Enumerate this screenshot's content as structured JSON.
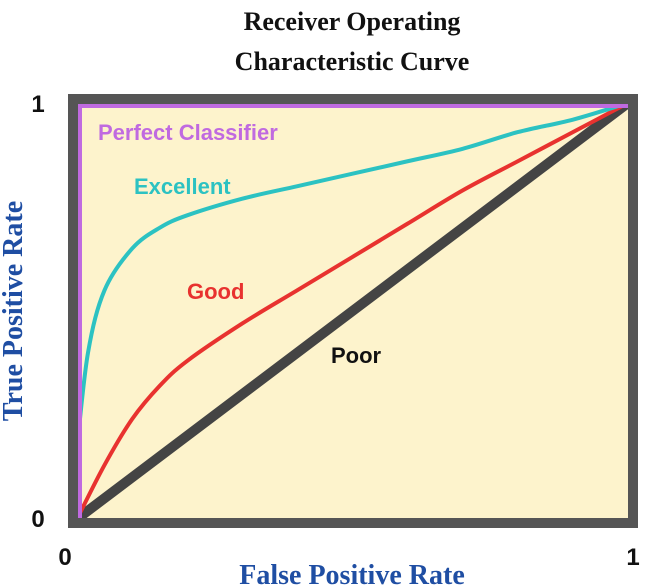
{
  "chart_data": {
    "type": "line",
    "title_lines": [
      "Receiver Operating",
      "Characteristic Curve"
    ],
    "xlabel": "False Positive Rate",
    "ylabel": "True Positive Rate",
    "x_ticks": [
      "0",
      "1"
    ],
    "y_ticks": [
      "0",
      "1"
    ],
    "xlim": [
      0,
      1
    ],
    "ylim": [
      0,
      1
    ],
    "grid": false,
    "background_color": "#fdf3cc",
    "series": [
      {
        "name": "Perfect Classifier",
        "color": "#c06ae0",
        "points": [
          [
            0,
            0
          ],
          [
            0,
            1
          ],
          [
            1,
            1
          ]
        ]
      },
      {
        "name": "Excellent",
        "color": "#2cc2c2",
        "points": [
          [
            0,
            0.17
          ],
          [
            0.02,
            0.4
          ],
          [
            0.05,
            0.55
          ],
          [
            0.1,
            0.65
          ],
          [
            0.15,
            0.7
          ],
          [
            0.2,
            0.73
          ],
          [
            0.3,
            0.77
          ],
          [
            0.4,
            0.8
          ],
          [
            0.5,
            0.83
          ],
          [
            0.6,
            0.86
          ],
          [
            0.7,
            0.89
          ],
          [
            0.8,
            0.93
          ],
          [
            0.9,
            0.96
          ],
          [
            1,
            1
          ]
        ]
      },
      {
        "name": "Good",
        "color": "#e8322f",
        "points": [
          [
            0,
            0
          ],
          [
            0.05,
            0.13
          ],
          [
            0.1,
            0.24
          ],
          [
            0.15,
            0.32
          ],
          [
            0.2,
            0.38
          ],
          [
            0.3,
            0.47
          ],
          [
            0.4,
            0.55
          ],
          [
            0.5,
            0.63
          ],
          [
            0.6,
            0.71
          ],
          [
            0.7,
            0.79
          ],
          [
            0.8,
            0.86
          ],
          [
            0.9,
            0.93
          ],
          [
            1,
            1
          ]
        ]
      },
      {
        "name": "Poor",
        "color": "#444444",
        "points": [
          [
            0,
            0
          ],
          [
            1,
            1
          ]
        ]
      }
    ]
  }
}
